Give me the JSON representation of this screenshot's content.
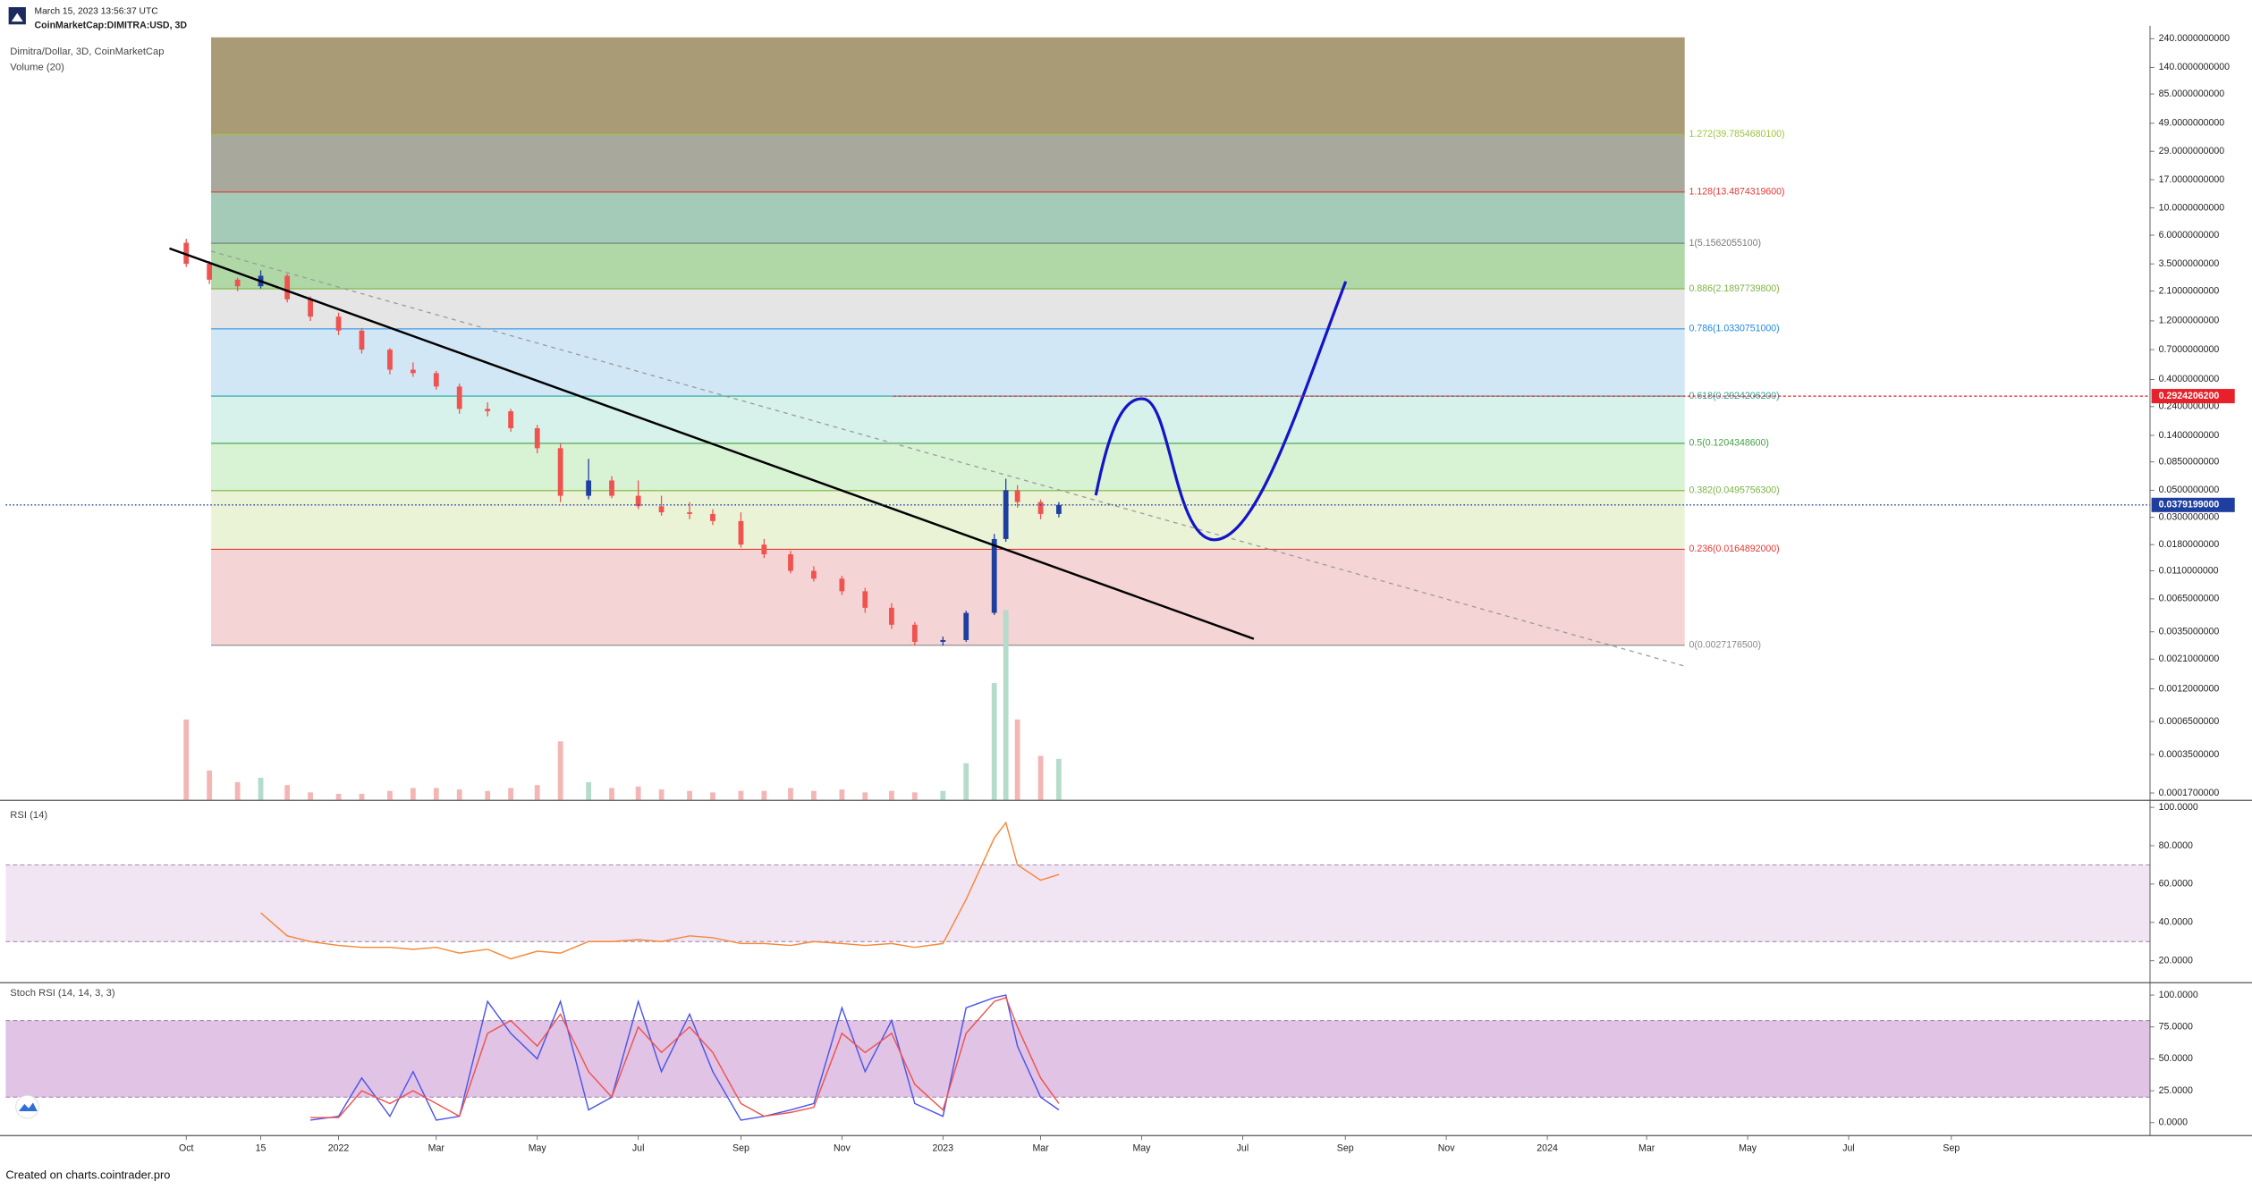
{
  "header": {
    "timestamp": "March 15, 2023 13:56:37 UTC",
    "symbol": "CoinMarketCap:DIMITRA:USD, 3D"
  },
  "footer": "Created on charts.cointrader.pro",
  "chart_data": [
    {
      "type": "candlestick",
      "title": "Dimitra/Dollar, 3D, CoinMarketCap",
      "log_scale": true,
      "up_color": "#1e3fa0",
      "down_color": "#ef5350",
      "x": [
        "2021-10-01",
        "2021-10-15",
        "2021-11-01",
        "2021-11-15",
        "2021-12-01",
        "2021-12-15",
        "2022-01-01",
        "2022-01-15",
        "2022-02-01",
        "2022-02-15",
        "2022-03-01",
        "2022-03-15",
        "2022-04-01",
        "2022-04-15",
        "2022-05-01",
        "2022-05-15",
        "2022-06-01",
        "2022-06-15",
        "2022-07-01",
        "2022-07-15",
        "2022-08-01",
        "2022-08-15",
        "2022-09-01",
        "2022-09-15",
        "2022-10-01",
        "2022-10-15",
        "2022-11-01",
        "2022-11-15",
        "2022-12-01",
        "2022-12-15",
        "2023-01-01",
        "2023-01-15",
        "2023-02-01",
        "2023-02-08",
        "2023-02-15",
        "2023-03-01",
        "2023-03-12"
      ],
      "open": [
        5.2,
        3.5,
        2.6,
        2.3,
        2.8,
        1.8,
        1.3,
        1.0,
        0.7,
        0.48,
        0.45,
        0.35,
        0.23,
        0.22,
        0.16,
        0.11,
        0.045,
        0.06,
        0.045,
        0.037,
        0.033,
        0.032,
        0.028,
        0.018,
        0.015,
        0.011,
        0.0095,
        0.0075,
        0.0055,
        0.004,
        0.0029,
        0.003,
        0.005,
        0.02,
        0.05,
        0.04,
        0.032
      ],
      "high": [
        5.6,
        3.7,
        2.7,
        3.1,
        2.9,
        1.9,
        1.4,
        1.05,
        0.72,
        0.55,
        0.47,
        0.37,
        0.26,
        0.23,
        0.17,
        0.12,
        0.09,
        0.065,
        0.06,
        0.045,
        0.04,
        0.035,
        0.033,
        0.02,
        0.016,
        0.012,
        0.01,
        0.008,
        0.006,
        0.0042,
        0.0032,
        0.0052,
        0.022,
        0.062,
        0.055,
        0.042,
        0.04
      ],
      "low": [
        3.3,
        2.4,
        2.1,
        2.2,
        1.7,
        1.2,
        0.92,
        0.65,
        0.44,
        0.42,
        0.33,
        0.21,
        0.2,
        0.15,
        0.1,
        0.04,
        0.042,
        0.043,
        0.035,
        0.031,
        0.029,
        0.026,
        0.017,
        0.014,
        0.0105,
        0.009,
        0.007,
        0.005,
        0.0037,
        0.0027,
        0.0027,
        0.0029,
        0.0048,
        0.019,
        0.036,
        0.029,
        0.03
      ],
      "close": [
        3.5,
        2.6,
        2.3,
        2.8,
        1.8,
        1.3,
        1.0,
        0.7,
        0.48,
        0.45,
        0.35,
        0.23,
        0.22,
        0.16,
        0.11,
        0.045,
        0.06,
        0.045,
        0.037,
        0.033,
        0.032,
        0.028,
        0.018,
        0.015,
        0.011,
        0.0095,
        0.0075,
        0.0055,
        0.004,
        0.0029,
        0.003,
        0.005,
        0.02,
        0.05,
        0.04,
        0.032,
        0.0379199
      ],
      "volume": {
        "name": "Volume (20)",
        "up_color": "#b5dccb",
        "down_color": "#f4b6b4",
        "values": [
          55,
          20,
          12,
          15,
          10,
          5,
          4,
          4,
          6,
          8,
          8,
          7,
          6,
          8,
          10,
          40,
          12,
          8,
          9,
          7,
          6,
          5,
          6,
          6,
          8,
          6,
          7,
          5,
          6,
          5,
          6,
          25,
          80,
          130,
          55,
          30,
          28
        ]
      },
      "xlim": [
        "2021-06-14",
        "2024-12-30"
      ],
      "ylim": [
        0.00015,
        246
      ],
      "yticks": [
        {
          "value": 240,
          "label": "240.0000000000"
        },
        {
          "value": 140,
          "label": "140.0000000000"
        },
        {
          "value": 85,
          "label": "85.0000000000"
        },
        {
          "value": 49,
          "label": "49.0000000000"
        },
        {
          "value": 29,
          "label": "29.0000000000"
        },
        {
          "value": 17,
          "label": "17.0000000000"
        },
        {
          "value": 10,
          "label": "10.0000000000"
        },
        {
          "value": 6,
          "label": "6.0000000000"
        },
        {
          "value": 3.5,
          "label": "3.5000000000"
        },
        {
          "value": 2.1,
          "label": "2.1000000000"
        },
        {
          "value": 1.2,
          "label": "1.2000000000"
        },
        {
          "value": 0.7,
          "label": "0.7000000000"
        },
        {
          "value": 0.4,
          "label": "0.4000000000"
        },
        {
          "value": 0.24,
          "label": "0.2400000000"
        },
        {
          "value": 0.14,
          "label": "0.1400000000"
        },
        {
          "value": 0.085,
          "label": "0.0850000000"
        },
        {
          "value": 0.05,
          "label": "0.0500000000"
        },
        {
          "value": 0.03,
          "label": "0.0300000000"
        },
        {
          "value": 0.018,
          "label": "0.0180000000"
        },
        {
          "value": 0.011,
          "label": "0.0110000000"
        },
        {
          "value": 0.0065,
          "label": "0.0065000000"
        },
        {
          "value": 0.0035,
          "label": "0.0035000000"
        },
        {
          "value": 0.0021,
          "label": "0.0021000000"
        },
        {
          "value": 0.0012,
          "label": "0.0012000000"
        },
        {
          "value": 0.00065,
          "label": "0.0006500000"
        },
        {
          "value": 0.00035,
          "label": "0.0003500000"
        },
        {
          "value": 0.00017,
          "label": "0.0001700000"
        }
      ],
      "fib": {
        "top_fill": "#a99b75",
        "levels": [
          {
            "value": 39.78546801,
            "label": "1.272(39.7854680100)",
            "color": "#9bc437",
            "fill": "#a8a89c"
          },
          {
            "value": 13.48743196,
            "label": "1.128(13.4874319600)",
            "color": "#e53935",
            "fill": "#a3cbb8"
          },
          {
            "value": 5.15620551,
            "label": "1(5.1562055100)",
            "color": "#787878",
            "fill": "#afd8a6"
          },
          {
            "value": 2.18977398,
            "label": "0.886(2.1897739800)",
            "color": "#7cb342",
            "fill": "#e5e5e5"
          },
          {
            "value": 1.0330751,
            "label": "0.786(1.0330751000)",
            "color": "#1e88e5",
            "fill": "#d2e7f5"
          },
          {
            "value": 0.29242062,
            "label": "0.618(0.2924206200)",
            "color": "#26a69a",
            "fill": "#d6f2ea"
          },
          {
            "value": 0.12043486,
            "label": "0.5(0.1204348600)",
            "color": "#43a047",
            "fill": "#d8f2d4"
          },
          {
            "value": 0.04957563,
            "label": "0.382(0.0495756300)",
            "color": "#7cb342",
            "fill": "#ebf3d6"
          },
          {
            "value": 0.0164892,
            "label": "0.236(0.0164892000)",
            "color": "#e53935",
            "fill": "#f4d4d4"
          },
          {
            "value": 0.00271765,
            "label": "0(0.0027176500)",
            "color": "#888888",
            "fill": null
          }
        ]
      },
      "alert_line": {
        "value": 0.29242062,
        "label": "0.2924206200",
        "color": "#e8202a"
      },
      "last_price": {
        "value": 0.0379199,
        "label": "0.0379199000",
        "color": "#1e3fa0"
      }
    },
    {
      "type": "line",
      "title": "RSI (14)",
      "band": [
        30,
        70
      ],
      "band_color": "#f1e4f3",
      "x": [
        "2021-10-01",
        "2021-10-15",
        "2021-11-01",
        "2021-11-15",
        "2021-12-01",
        "2021-12-15",
        "2022-01-01",
        "2022-01-15",
        "2022-02-01",
        "2022-02-15",
        "2022-03-01",
        "2022-03-15",
        "2022-04-01",
        "2022-04-15",
        "2022-05-01",
        "2022-05-15",
        "2022-06-01",
        "2022-06-15",
        "2022-07-01",
        "2022-07-15",
        "2022-08-01",
        "2022-08-15",
        "2022-09-01",
        "2022-09-15",
        "2022-10-01",
        "2022-10-15",
        "2022-11-01",
        "2022-11-15",
        "2022-12-01",
        "2022-12-15",
        "2023-01-01",
        "2023-01-15",
        "2023-02-01",
        "2023-02-08",
        "2023-02-15",
        "2023-03-01",
        "2023-03-12"
      ],
      "series": [
        {
          "color": "#f5883a",
          "values": [
            null,
            null,
            null,
            45,
            33,
            30,
            28,
            27,
            27,
            26,
            27,
            24,
            26,
            21,
            25,
            24,
            30,
            30,
            31,
            30,
            33,
            32,
            29,
            29,
            28,
            30,
            29,
            28,
            29,
            27,
            29,
            52,
            84,
            92,
            70,
            62,
            65
          ]
        }
      ],
      "xlim": [
        "2021-06-14",
        "2024-12-30"
      ],
      "ylim": [
        9.7,
        102.5
      ],
      "yticks": [
        {
          "value": 100,
          "label": "100.0000"
        },
        {
          "value": 80,
          "label": "80.0000"
        },
        {
          "value": 60,
          "label": "60.0000"
        },
        {
          "value": 40,
          "label": "40.0000"
        },
        {
          "value": 20,
          "label": "20.0000"
        }
      ]
    },
    {
      "type": "line",
      "title": "Stoch RSI (14, 14, 3, 3)",
      "band": [
        20,
        80
      ],
      "band_color": "#e0c3e5",
      "x": [
        "2021-10-01",
        "2021-10-15",
        "2021-11-01",
        "2021-11-15",
        "2021-12-01",
        "2021-12-15",
        "2022-01-01",
        "2022-01-15",
        "2022-02-01",
        "2022-02-15",
        "2022-03-01",
        "2022-03-15",
        "2022-04-01",
        "2022-04-15",
        "2022-05-01",
        "2022-05-15",
        "2022-06-01",
        "2022-06-15",
        "2022-07-01",
        "2022-07-15",
        "2022-08-01",
        "2022-08-15",
        "2022-09-01",
        "2022-09-15",
        "2022-10-01",
        "2022-10-15",
        "2022-11-01",
        "2022-11-15",
        "2022-12-01",
        "2022-12-15",
        "2023-01-01",
        "2023-01-15",
        "2023-02-01",
        "2023-02-08",
        "2023-02-15",
        "2023-03-01",
        "2023-03-12"
      ],
      "series": [
        {
          "color": "#4d55e8",
          "values": [
            null,
            null,
            null,
            null,
            null,
            2,
            5,
            35,
            5,
            40,
            2,
            5,
            95,
            70,
            50,
            95,
            10,
            20,
            95,
            40,
            85,
            40,
            2,
            5,
            10,
            15,
            90,
            40,
            80,
            15,
            5,
            90,
            98,
            100,
            60,
            20,
            10
          ]
        },
        {
          "color": "#ef5350",
          "values": [
            null,
            null,
            null,
            null,
            null,
            4,
            4,
            25,
            15,
            25,
            15,
            5,
            70,
            80,
            60,
            85,
            40,
            20,
            75,
            55,
            75,
            55,
            15,
            5,
            8,
            12,
            70,
            55,
            70,
            30,
            10,
            70,
            95,
            98,
            75,
            35,
            15
          ]
        }
      ],
      "xlim": [
        "2021-06-14",
        "2024-12-30"
      ],
      "ylim": [
        -9,
        108
      ],
      "yticks": [
        {
          "value": 100,
          "label": "100.0000"
        },
        {
          "value": 75,
          "label": "75.0000"
        },
        {
          "value": 50,
          "label": "50.0000"
        },
        {
          "value": 25,
          "label": "25.0000"
        },
        {
          "value": 0,
          "label": "0.0000"
        }
      ],
      "xticks": [
        {
          "value": "2021-10-01",
          "label": "Oct"
        },
        {
          "value": "2021-11-15",
          "label": "15"
        },
        {
          "value": "2022-01-01",
          "label": "2022"
        },
        {
          "value": "2022-03-01",
          "label": "Mar"
        },
        {
          "value": "2022-05-01",
          "label": "May"
        },
        {
          "value": "2022-07-01",
          "label": "Jul"
        },
        {
          "value": "2022-09-01",
          "label": "Sep"
        },
        {
          "value": "2022-11-01",
          "label": "Nov"
        },
        {
          "value": "2023-01-01",
          "label": "2023"
        },
        {
          "value": "2023-03-01",
          "label": "Mar"
        },
        {
          "value": "2023-05-01",
          "label": "May"
        },
        {
          "value": "2023-07-01",
          "label": "Jul"
        },
        {
          "value": "2023-09-01",
          "label": "Sep"
        },
        {
          "value": "2023-11-01",
          "label": "Nov"
        },
        {
          "value": "2024-01-01",
          "label": "2024"
        },
        {
          "value": "2024-03-01",
          "label": "Mar"
        },
        {
          "value": "2024-05-01",
          "label": "May"
        },
        {
          "value": "2024-07-01",
          "label": "Jul"
        },
        {
          "value": "2024-09-01",
          "label": "Sep"
        }
      ]
    }
  ]
}
